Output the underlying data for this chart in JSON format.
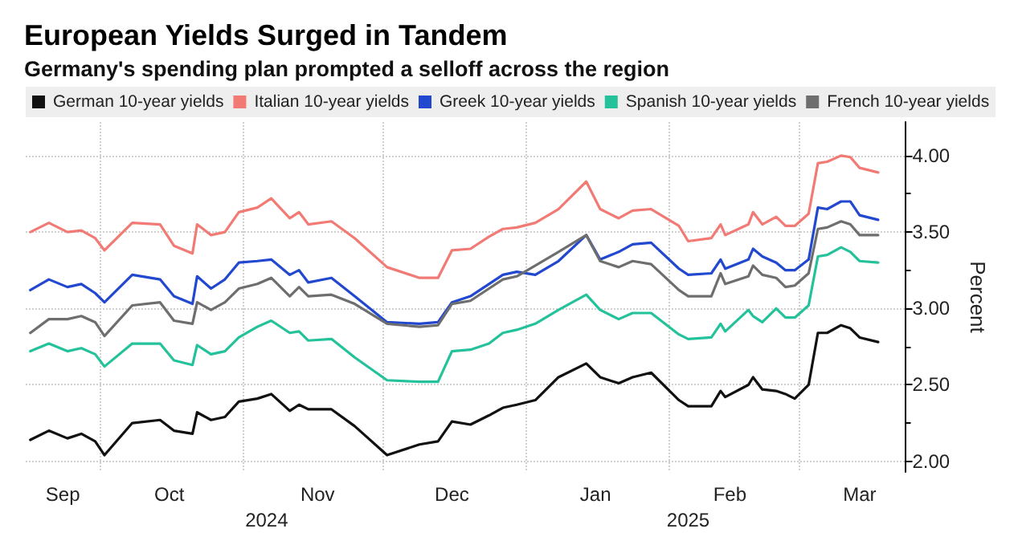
{
  "chart_data": {
    "type": "line",
    "title": "European Yields Surged in Tandem",
    "subtitle": "Germany's spending plan prompted a selloff across the region",
    "ylabel": "Percent",
    "x": [
      "2024-09-16",
      "2024-09-20",
      "2024-09-24",
      "2024-09-27",
      "2024-09-30",
      "2024-10-02",
      "2024-10-08",
      "2024-10-14",
      "2024-10-17",
      "2024-10-21",
      "2024-10-22",
      "2024-10-25",
      "2024-10-28",
      "2024-10-31",
      "2024-11-04",
      "2024-11-07",
      "2024-11-11",
      "2024-11-13",
      "2024-11-15",
      "2024-11-20",
      "2024-11-25",
      "2024-12-02",
      "2024-12-09",
      "2024-12-13",
      "2024-12-16",
      "2024-12-20",
      "2024-12-24",
      "2024-12-27",
      "2024-12-30",
      "2025-01-03",
      "2025-01-08",
      "2025-01-14",
      "2025-01-17",
      "2025-01-21",
      "2025-01-24",
      "2025-01-28",
      "2025-02-03",
      "2025-02-05",
      "2025-02-10",
      "2025-02-12",
      "2025-02-13",
      "2025-02-18",
      "2025-02-19",
      "2025-02-21",
      "2025-02-24",
      "2025-02-26",
      "2025-02-28",
      "2025-03-03",
      "2025-03-05",
      "2025-03-07",
      "2025-03-10",
      "2025-03-12",
      "2025-03-14",
      "2025-03-18"
    ],
    "series": [
      {
        "name": "German 10-year yields",
        "color": "#111111",
        "values": [
          2.14,
          2.2,
          2.15,
          2.18,
          2.13,
          2.04,
          2.25,
          2.27,
          2.2,
          2.18,
          2.32,
          2.27,
          2.29,
          2.39,
          2.41,
          2.44,
          2.33,
          2.37,
          2.34,
          2.34,
          2.23,
          2.04,
          2.11,
          2.13,
          2.26,
          2.24,
          2.3,
          2.35,
          2.37,
          2.4,
          2.55,
          2.64,
          2.55,
          2.51,
          2.55,
          2.58,
          2.4,
          2.36,
          2.36,
          2.46,
          2.42,
          2.5,
          2.55,
          2.47,
          2.46,
          2.44,
          2.41,
          2.5,
          2.84,
          2.84,
          2.89,
          2.87,
          2.81,
          2.78
        ]
      },
      {
        "name": "Italian 10-year yields",
        "color": "#f27a74",
        "values": [
          3.5,
          3.56,
          3.5,
          3.51,
          3.46,
          3.38,
          3.56,
          3.55,
          3.41,
          3.36,
          3.55,
          3.48,
          3.5,
          3.63,
          3.66,
          3.72,
          3.59,
          3.63,
          3.55,
          3.57,
          3.46,
          3.27,
          3.2,
          3.2,
          3.38,
          3.39,
          3.47,
          3.52,
          3.53,
          3.56,
          3.65,
          3.83,
          3.65,
          3.59,
          3.64,
          3.65,
          3.54,
          3.44,
          3.46,
          3.55,
          3.48,
          3.55,
          3.63,
          3.55,
          3.6,
          3.54,
          3.54,
          3.62,
          3.95,
          3.96,
          4.0,
          3.99,
          3.92,
          3.89
        ]
      },
      {
        "name": "Greek 10-year yields",
        "color": "#2248d0",
        "values": [
          3.12,
          3.19,
          3.14,
          3.16,
          3.1,
          3.04,
          3.22,
          3.19,
          3.08,
          3.03,
          3.21,
          3.13,
          3.19,
          3.3,
          3.31,
          3.32,
          3.22,
          3.25,
          3.17,
          3.2,
          3.08,
          2.91,
          2.9,
          2.91,
          3.04,
          3.08,
          3.16,
          3.22,
          3.24,
          3.22,
          3.31,
          3.48,
          3.32,
          3.37,
          3.42,
          3.43,
          3.26,
          3.22,
          3.23,
          3.32,
          3.26,
          3.32,
          3.39,
          3.34,
          3.3,
          3.25,
          3.25,
          3.32,
          3.66,
          3.65,
          3.7,
          3.7,
          3.61,
          3.58
        ]
      },
      {
        "name": "Spanish 10-year yields",
        "color": "#24c29a",
        "values": [
          2.72,
          2.77,
          2.72,
          2.74,
          2.7,
          2.62,
          2.77,
          2.77,
          2.66,
          2.63,
          2.76,
          2.7,
          2.72,
          2.81,
          2.88,
          2.92,
          2.84,
          2.85,
          2.79,
          2.8,
          2.68,
          2.53,
          2.52,
          2.52,
          2.72,
          2.73,
          2.77,
          2.84,
          2.86,
          2.9,
          2.99,
          3.09,
          2.99,
          2.93,
          2.97,
          2.97,
          2.83,
          2.8,
          2.81,
          2.9,
          2.85,
          2.99,
          2.95,
          2.91,
          3.0,
          2.94,
          2.94,
          3.02,
          3.34,
          3.35,
          3.4,
          3.37,
          3.31,
          3.3
        ]
      },
      {
        "name": "French 10-year yields",
        "color": "#6e6e6e",
        "values": [
          2.84,
          2.93,
          2.93,
          2.95,
          2.91,
          2.82,
          3.02,
          3.04,
          2.92,
          2.9,
          3.04,
          2.99,
          3.04,
          3.13,
          3.16,
          3.2,
          3.08,
          3.14,
          3.08,
          3.09,
          3.03,
          2.9,
          2.88,
          2.89,
          3.03,
          3.05,
          3.13,
          3.19,
          3.21,
          3.28,
          3.37,
          3.48,
          3.31,
          3.27,
          3.31,
          3.29,
          3.12,
          3.08,
          3.08,
          3.23,
          3.16,
          3.21,
          3.28,
          3.22,
          3.2,
          3.14,
          3.15,
          3.23,
          3.52,
          3.53,
          3.57,
          3.55,
          3.48,
          3.48
        ]
      }
    ],
    "xlim": [
      "2024-09-15",
      "2025-03-24"
    ],
    "xticks": [
      {
        "value": "2024-09-23",
        "label": "Sep"
      },
      {
        "value": "2024-10-16",
        "label": "Oct"
      },
      {
        "value": "2024-11-17",
        "label": "Nov"
      },
      {
        "value": "2024-12-16",
        "label": "Dec"
      },
      {
        "value": "2025-01-16",
        "label": "Jan"
      },
      {
        "value": "2025-02-14",
        "label": "Feb"
      },
      {
        "value": "2025-03-14",
        "label": "Mar"
      },
      {
        "value": "2024-10-01",
        "label": null
      },
      {
        "value": "2024-11-01",
        "label": null
      },
      {
        "value": "2024-12-01",
        "label": null
      },
      {
        "value": "2025-01-01",
        "label": null
      },
      {
        "value": "2025-02-01",
        "label": null
      },
      {
        "value": "2025-03-01",
        "label": null
      }
    ],
    "x2lim": [
      "2024-09-15",
      "2025-03-24"
    ],
    "x2ticks": [
      {
        "value": "2024-11-06",
        "label": "2024"
      },
      {
        "value": "2025-02-05",
        "label": "2025"
      }
    ],
    "ylim": [
      1.93,
      4.22
    ],
    "yticks": [
      {
        "value": 2,
        "label": "2.00"
      },
      {
        "value": 2.25,
        "label": null
      },
      {
        "value": 2.5,
        "label": "2.50"
      },
      {
        "value": 2.75,
        "label": null
      },
      {
        "value": 3,
        "label": "3.00"
      },
      {
        "value": 3.25,
        "label": null
      },
      {
        "value": 3.5,
        "label": "3.50"
      },
      {
        "value": 3.75,
        "label": null
      },
      {
        "value": 4,
        "label": "4.00"
      }
    ],
    "grid": true,
    "legend": "top",
    "marker": "none",
    "line_style": "solid"
  }
}
